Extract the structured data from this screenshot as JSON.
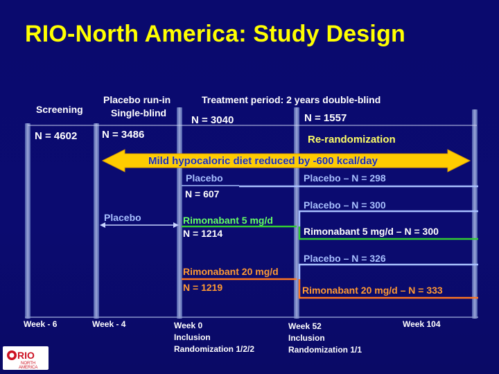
{
  "title": "RIO-North America: Study Design",
  "phases": {
    "screening": "Screening",
    "runin_line1": "Placebo run-in",
    "runin_line2": "Single-blind",
    "treatment": "Treatment period: 2 years double-blind"
  },
  "counts": {
    "screening": "N = 4602",
    "runin": "N = 3486",
    "week0": "N = 3040",
    "week52": "N = 1557"
  },
  "rerandomization": "Re-randomization",
  "diet": "Mild hypocaloric diet reduced by -600 kcal/day",
  "runin_arm": "Placebo",
  "year1": {
    "placebo_label": "Placebo",
    "placebo_n": "N = 607",
    "r5_label": "Rimonabant  5 mg/d",
    "r5_n": "N = 1214",
    "r20_label": "Rimonabant  20 mg/d",
    "r20_n": "N = 1219"
  },
  "year2": {
    "placebo_placebo": "Placebo – N = 298",
    "r5_placebo": "Placebo – N = 300",
    "r5_r5": "Rimonabant 5 mg/d – N = 300",
    "r20_placebo": "Placebo – N = 326",
    "r20_r20": "Rimonabant 20 mg/d – N = 333"
  },
  "timeline": {
    "wm6": "Week - 6",
    "wm4": "Week - 4",
    "w0_1": "Week 0",
    "w0_2": "Inclusion",
    "w0_3": "Randomization 1/2/2",
    "w52_1": "Week 52",
    "w52_2": "Inclusion",
    "w52_3": "Randomization 1/1",
    "w104": "Week 104"
  },
  "logo": {
    "line1": "RIO",
    "line2": "NORTH",
    "line3": "AMERICA"
  },
  "colors": {
    "title": "#ffff00",
    "placebo_line": "#a8c0ff",
    "r5_line": "#33cc33",
    "r20_line": "#ff7722",
    "arrow": "#ffcc00"
  }
}
